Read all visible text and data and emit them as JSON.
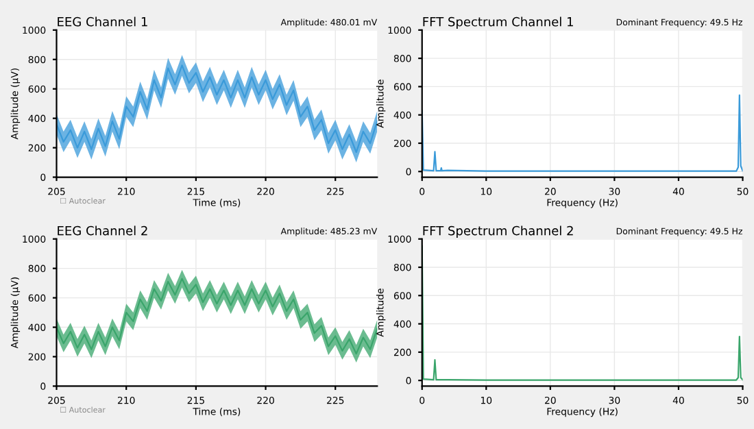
{
  "chart_data": [
    {
      "type": "line",
      "title": "EEG Channel 1",
      "xlabel": "Time (ms)",
      "ylabel": "Amplitude (µV)",
      "annotations": [
        "Amplitude: 480.01 mV",
        "☐ Autoclear"
      ],
      "xlim": [
        205,
        228
      ],
      "xticks": [
        205,
        210,
        215,
        220,
        225
      ],
      "ylim": [
        0,
        1000
      ],
      "yticks": [
        0,
        200,
        400,
        600,
        800,
        1000
      ],
      "grid": true,
      "x": [
        205,
        205.5,
        206,
        206.5,
        207,
        207.5,
        208,
        208.5,
        209,
        209.5,
        210,
        210.5,
        211,
        211.5,
        212,
        212.5,
        213,
        213.5,
        214,
        214.5,
        215,
        215.5,
        216,
        216.5,
        217,
        217.5,
        218,
        218.5,
        219,
        219.5,
        220,
        220.5,
        221,
        221.5,
        222,
        222.5,
        223,
        223.5,
        224,
        224.5,
        225,
        225.5,
        226,
        226.5,
        227,
        227.5,
        228
      ],
      "series": [
        {
          "color": "#3a9ad9",
          "values": [
            360,
            240,
            320,
            200,
            310,
            190,
            330,
            210,
            380,
            260,
            480,
            410,
            580,
            460,
            660,
            540,
            740,
            630,
            760,
            640,
            710,
            580,
            680,
            560,
            660,
            540,
            660,
            540,
            680,
            560,
            660,
            530,
            630,
            490,
            590,
            410,
            480,
            320,
            390,
            230,
            320,
            190,
            290,
            170,
            310,
            230,
            380
          ],
          "lower": [
            290,
            170,
            250,
            130,
            240,
            120,
            260,
            140,
            310,
            190,
            410,
            340,
            510,
            390,
            590,
            470,
            670,
            560,
            690,
            570,
            640,
            510,
            610,
            490,
            590,
            470,
            590,
            470,
            610,
            490,
            590,
            460,
            560,
            420,
            520,
            340,
            410,
            250,
            320,
            160,
            250,
            120,
            220,
            100,
            240,
            160,
            310
          ],
          "upper": [
            430,
            310,
            390,
            270,
            380,
            260,
            400,
            280,
            450,
            330,
            550,
            480,
            650,
            530,
            730,
            610,
            810,
            700,
            830,
            710,
            780,
            650,
            750,
            630,
            730,
            610,
            730,
            610,
            750,
            630,
            730,
            600,
            700,
            560,
            660,
            480,
            550,
            390,
            460,
            300,
            390,
            260,
            360,
            240,
            380,
            300,
            450
          ]
        }
      ]
    },
    {
      "type": "line",
      "title": "FFT Spectrum Channel 1",
      "xlabel": "Frequency (Hz)",
      "ylabel": "Amplitude",
      "annotations": [
        "Dominant Frequency: 49.5 Hz"
      ],
      "xlim": [
        0,
        50
      ],
      "xticks": [
        0,
        10,
        20,
        30,
        40,
        50
      ],
      "ylim": [
        -40,
        1000
      ],
      "yticks": [
        0,
        200,
        400,
        600,
        800,
        1000
      ],
      "grid": true,
      "series": [
        {
          "color": "#3a9ad9",
          "x": [
            0,
            0.2,
            1.8,
            2,
            2.2,
            2.9,
            3,
            3.1,
            4,
            10,
            30,
            49,
            49.3,
            49.5,
            49.7,
            50
          ],
          "values": [
            430,
            10,
            5,
            140,
            5,
            5,
            25,
            5,
            8,
            3,
            3,
            3,
            30,
            540,
            40,
            5
          ]
        }
      ]
    },
    {
      "type": "line",
      "title": "EEG Channel 2",
      "xlabel": "Time (ms)",
      "ylabel": "Amplitude (µV)",
      "annotations": [
        "Amplitude: 485.23 mV",
        "☐ Autoclear"
      ],
      "xlim": [
        205,
        228
      ],
      "xticks": [
        205,
        210,
        215,
        220,
        225
      ],
      "ylim": [
        0,
        1000
      ],
      "yticks": [
        0,
        200,
        400,
        600,
        800,
        1000
      ],
      "grid": true,
      "x": [
        205,
        205.5,
        206,
        206.5,
        207,
        207.5,
        208,
        208.5,
        209,
        209.5,
        210,
        210.5,
        211,
        211.5,
        212,
        212.5,
        213,
        213.5,
        214,
        214.5,
        215,
        215.5,
        216,
        216.5,
        217,
        217.5,
        218,
        218.5,
        219,
        219.5,
        220,
        220.5,
        221,
        221.5,
        222,
        222.5,
        223,
        223.5,
        224,
        224.5,
        225,
        225.5,
        226,
        226.5,
        227,
        227.5,
        228
      ],
      "series": [
        {
          "color": "#3aa56b",
          "values": [
            400,
            290,
            370,
            260,
            350,
            250,
            370,
            270,
            400,
            310,
            500,
            440,
            590,
            510,
            660,
            580,
            710,
            620,
            730,
            630,
            690,
            570,
            660,
            560,
            650,
            550,
            650,
            550,
            660,
            560,
            650,
            540,
            630,
            510,
            590,
            450,
            500,
            360,
            410,
            270,
            340,
            240,
            320,
            220,
            330,
            250,
            390
          ],
          "lower": [
            340,
            230,
            310,
            200,
            290,
            190,
            310,
            210,
            340,
            250,
            440,
            380,
            530,
            450,
            600,
            520,
            650,
            560,
            670,
            570,
            630,
            510,
            600,
            500,
            590,
            490,
            590,
            490,
            600,
            500,
            590,
            480,
            570,
            450,
            530,
            390,
            440,
            300,
            350,
            210,
            280,
            180,
            260,
            160,
            270,
            190,
            330
          ],
          "upper": [
            460,
            350,
            430,
            320,
            410,
            310,
            430,
            330,
            460,
            370,
            560,
            500,
            650,
            570,
            720,
            640,
            770,
            680,
            790,
            690,
            750,
            630,
            720,
            620,
            710,
            610,
            710,
            610,
            720,
            620,
            710,
            600,
            690,
            570,
            650,
            510,
            560,
            420,
            470,
            330,
            400,
            300,
            380,
            280,
            390,
            310,
            450
          ]
        }
      ]
    },
    {
      "type": "line",
      "title": "FFT Spectrum Channel 2",
      "xlabel": "Frequency (Hz)",
      "ylabel": "Amplitude",
      "annotations": [
        "Dominant Frequency: 49.5 Hz"
      ],
      "xlim": [
        0,
        50
      ],
      "xticks": [
        0,
        10,
        20,
        30,
        40,
        50
      ],
      "ylim": [
        -40,
        1000
      ],
      "yticks": [
        0,
        200,
        400,
        600,
        800,
        1000
      ],
      "grid": true,
      "series": [
        {
          "color": "#3aa56b",
          "x": [
            0,
            0.2,
            1.8,
            2,
            2.2,
            4,
            10,
            30,
            49,
            49.3,
            49.5,
            49.7,
            50
          ],
          "values": [
            950,
            10,
            5,
            145,
            5,
            5,
            2,
            2,
            3,
            20,
            310,
            20,
            5
          ]
        }
      ]
    }
  ]
}
